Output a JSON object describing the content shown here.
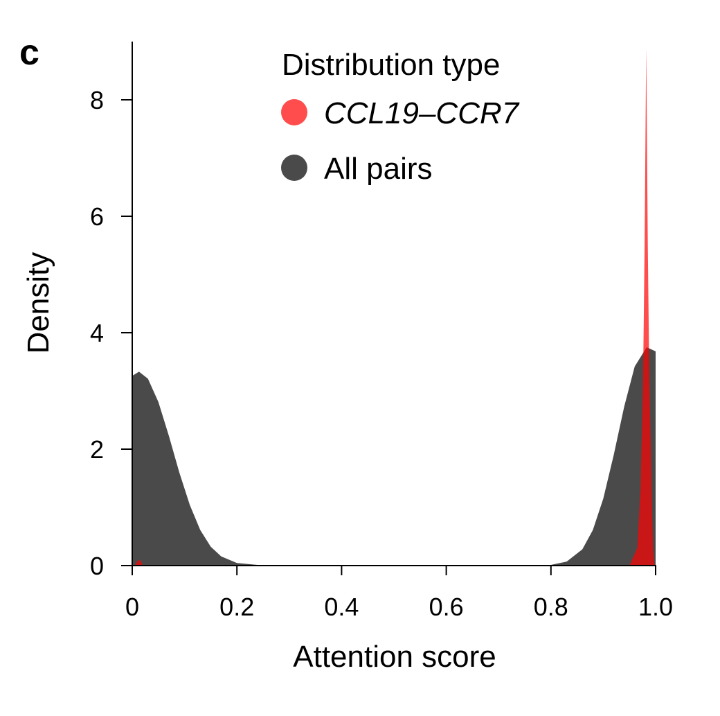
{
  "panel_label": "c",
  "chart_data": {
    "type": "area",
    "title": "",
    "xlabel": "Attention score",
    "ylabel": "Density",
    "xlim": [
      0,
      1.0
    ],
    "ylim": [
      0,
      8.95
    ],
    "x_ticks": [
      "0",
      "0.2",
      "0.4",
      "0.6",
      "0.8",
      "1.0"
    ],
    "x_tick_values": [
      0,
      0.2,
      0.4,
      0.6,
      0.8,
      1.0
    ],
    "y_ticks": [
      "0",
      "2",
      "4",
      "6",
      "8"
    ],
    "y_tick_values": [
      0,
      2,
      4,
      6,
      8
    ],
    "grid": false,
    "legend": {
      "title": "Distribution type",
      "placement": "top-center",
      "entries": [
        {
          "label": "CCL19–CCR7",
          "color": "#ff4c4c",
          "italic": true
        },
        {
          "label": "All pairs",
          "color": "#4a4a4a",
          "italic": false
        }
      ]
    },
    "series": [
      {
        "name": "All pairs",
        "color": "#4a4a4a",
        "opacity": 1,
        "x": [
          0,
          0.013,
          0.03,
          0.05,
          0.07,
          0.09,
          0.11,
          0.13,
          0.15,
          0.17,
          0.2,
          0.25,
          0.3,
          0.4,
          0.5,
          0.6,
          0.7,
          0.75,
          0.8,
          0.83,
          0.86,
          0.88,
          0.9,
          0.92,
          0.94,
          0.96,
          0.983,
          1.0
        ],
        "y": [
          3.26,
          3.33,
          3.21,
          2.81,
          2.23,
          1.6,
          1.04,
          0.61,
          0.325,
          0.157,
          0.044,
          0.003,
          0,
          0,
          0,
          0,
          0,
          0.001,
          0.012,
          0.068,
          0.28,
          0.61,
          1.15,
          1.9,
          2.73,
          3.42,
          3.75,
          3.68
        ]
      },
      {
        "name": "CCL19–CCR7",
        "color": "#ff0000",
        "opacity": 0.7,
        "x": [
          0.005,
          0.01,
          0.015,
          0.02,
          0.95,
          0.965,
          0.971,
          0.976,
          0.979,
          0.982,
          0.985,
          0.988,
          0.992,
          0.995,
          0.998
        ],
        "y": [
          0,
          0.08,
          0.1,
          0,
          0,
          0.3,
          1.3,
          3.2,
          5.5,
          8.9,
          5.5,
          3.2,
          1.4,
          0.3,
          0
        ]
      }
    ]
  }
}
